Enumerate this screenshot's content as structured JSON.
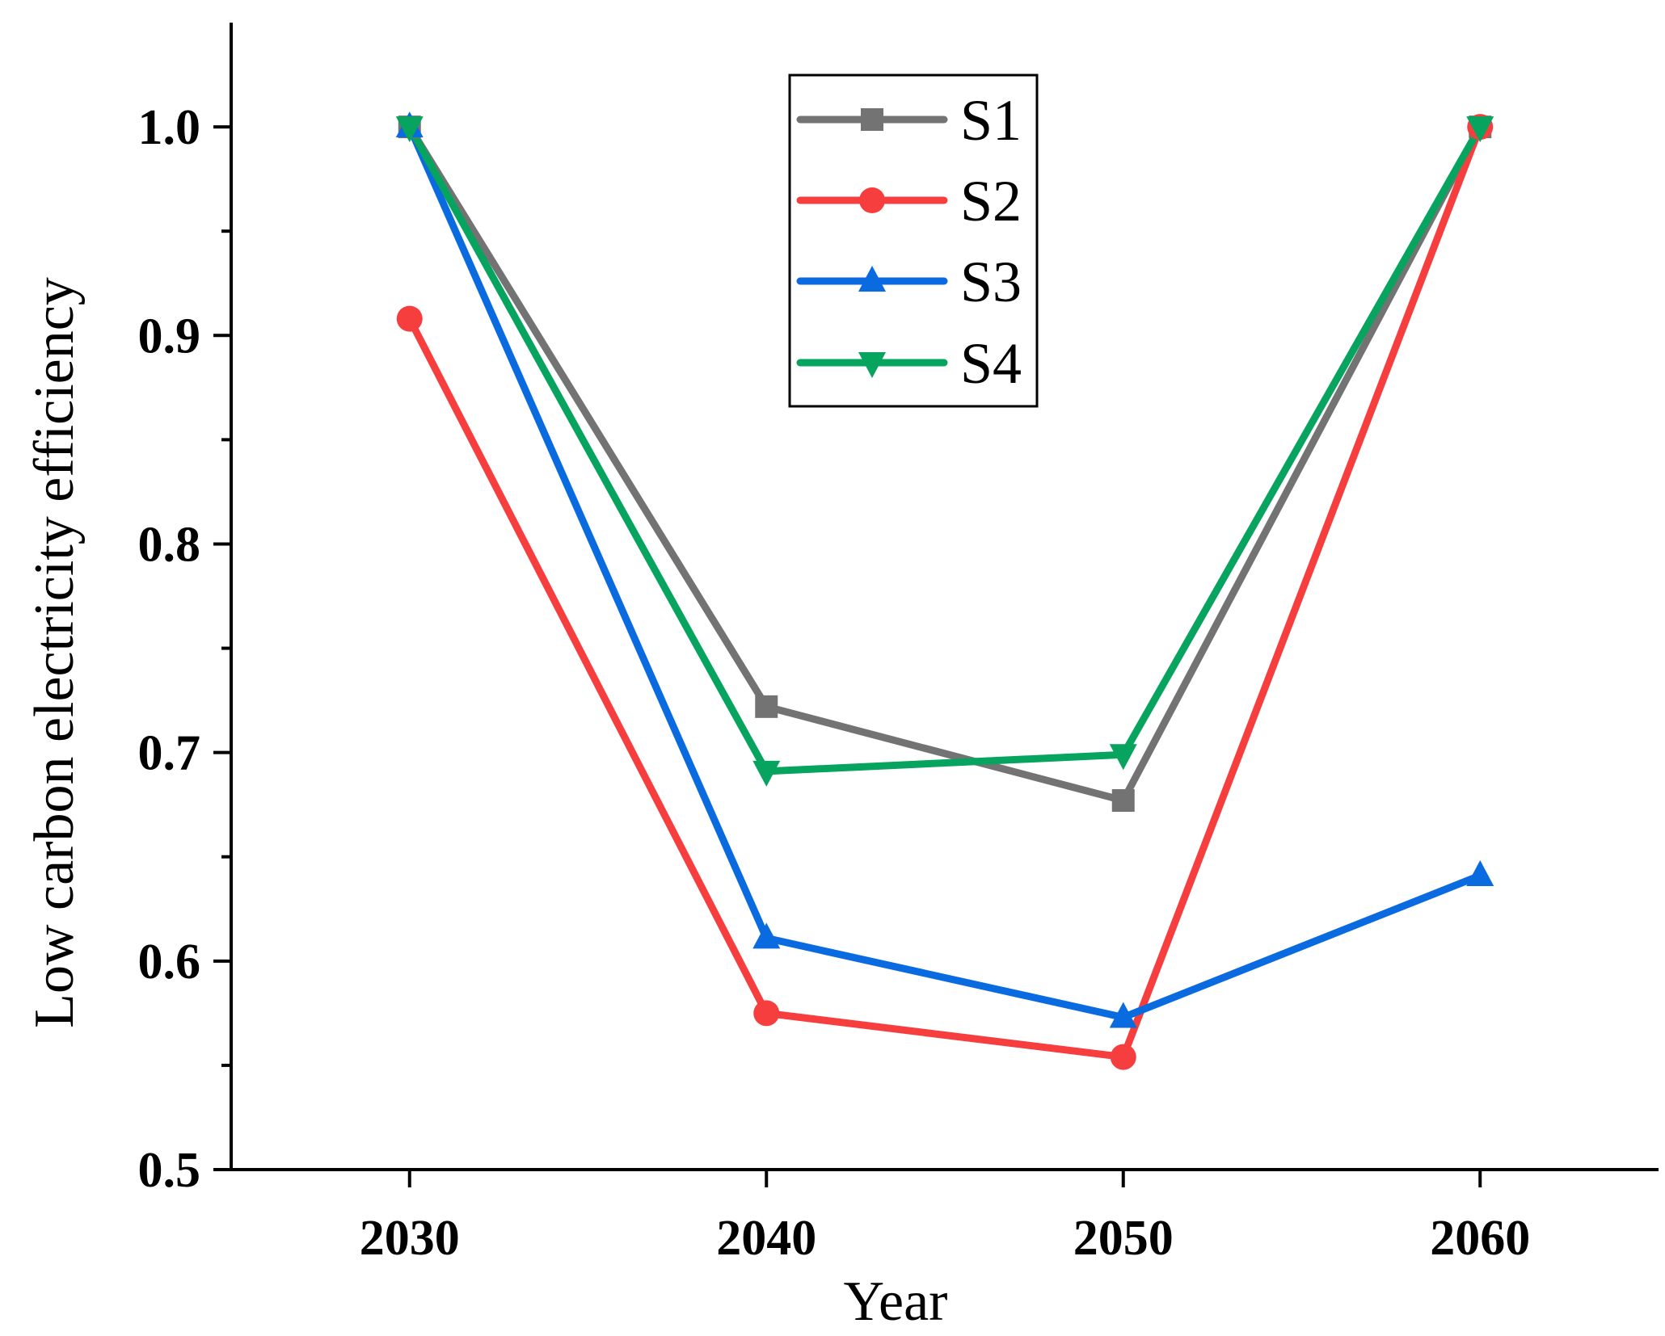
{
  "chart_data": {
    "type": "line",
    "title": "",
    "xlabel": "Year",
    "ylabel": "Low carbon electricity efficiency",
    "xlim": [
      2025,
      2065
    ],
    "ylim": [
      0.5,
      1.05
    ],
    "x": [
      2030,
      2040,
      2050,
      2060
    ],
    "xticks": [
      {
        "value": 2030,
        "label": "2030"
      },
      {
        "value": 2040,
        "label": "2040"
      },
      {
        "value": 2050,
        "label": "2050"
      },
      {
        "value": 2060,
        "label": "2060"
      }
    ],
    "yticks": [
      {
        "value": 0.5,
        "label": "0.5"
      },
      {
        "value": 0.6,
        "label": "0.6"
      },
      {
        "value": 0.7,
        "label": "0.7"
      },
      {
        "value": 0.8,
        "label": "0.8"
      },
      {
        "value": 0.9,
        "label": "0.9"
      },
      {
        "value": 1.0,
        "label": "1.0"
      }
    ],
    "yminor_ticks": [
      0.55,
      0.65,
      0.75,
      0.85,
      0.95
    ],
    "grid": false,
    "legend_position": "top-center",
    "series": [
      {
        "name": "S1",
        "color": "#737373",
        "marker": "square",
        "values": [
          1.0,
          0.722,
          0.677,
          1.0
        ]
      },
      {
        "name": "S2",
        "color": "#f73e3e",
        "marker": "circle",
        "values": [
          0.908,
          0.575,
          0.554,
          1.0
        ]
      },
      {
        "name": "S3",
        "color": "#0a6ae0",
        "marker": "triangle-up",
        "values": [
          1.0,
          0.611,
          0.573,
          0.641
        ]
      },
      {
        "name": "S4",
        "color": "#06a45e",
        "marker": "triangle-down",
        "values": [
          1.0,
          0.691,
          0.699,
          1.0
        ]
      }
    ]
  }
}
